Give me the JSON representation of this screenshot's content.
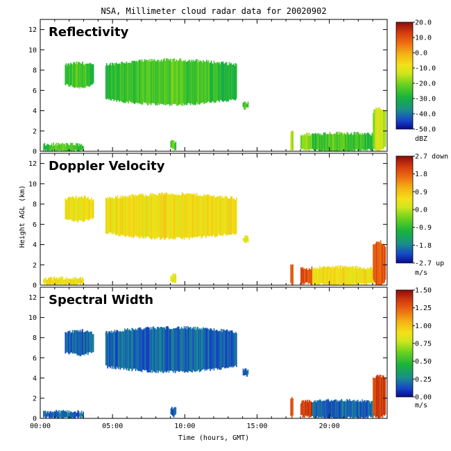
{
  "title": "NSA, Millimeter cloud radar data for 20020902",
  "chart_data": {
    "type": "heatmap",
    "title": "NSA, Millimeter cloud radar data for 20020902",
    "xlabel": "Time (hours, GMT)",
    "ylabel": "Height AGL (km)",
    "x_range": [
      0,
      24
    ],
    "y_range": [
      0,
      13
    ],
    "x_ticks": [
      {
        "value": 0,
        "label": "00:00"
      },
      {
        "value": 5,
        "label": "05:00"
      },
      {
        "value": 10,
        "label": "10:00"
      },
      {
        "value": 15,
        "label": "15:00"
      },
      {
        "value": 20,
        "label": "20:00"
      }
    ],
    "y_ticks": [
      0,
      2,
      4,
      6,
      8,
      10,
      12
    ],
    "grid": false,
    "panels": [
      {
        "title": "Reflectivity",
        "unit": "dBZ",
        "colorbar_ticks": [
          "20.0",
          "10.0",
          "0.0",
          "-10.0",
          "-20.0",
          "-30.0",
          "-40.0",
          "-50.0"
        ],
        "typical_value": 0.3,
        "core_value": 0.45
      },
      {
        "title": "Doppler Velocity",
        "unit": "m/s",
        "colorbar_ticks": [
          "2.7 down",
          "1.8",
          "0.9",
          "0.0",
          "-0.9",
          "-1.8",
          "-2.7 up"
        ],
        "typical_value": 0.6,
        "core_value": 0.85
      },
      {
        "title": "Spectral Width",
        "unit": "m/s",
        "colorbar_ticks": [
          "1.50",
          "1.25",
          "1.00",
          "0.75",
          "0.50",
          "0.25",
          "0.00"
        ],
        "typical_value": 0.12,
        "core_value": 0.9
      }
    ],
    "echo_regions": [
      {
        "name": "high-cloud-a",
        "x0": 1.7,
        "x1": 3.7,
        "base": 6.3,
        "top": 8.7
      },
      {
        "name": "high-cloud-b",
        "x0": 4.5,
        "x1": 13.6,
        "base": 4.6,
        "top": 9.0
      },
      {
        "name": "patch-14h",
        "x0": 14.0,
        "x1": 14.4,
        "base": 4.2,
        "top": 4.8
      },
      {
        "name": "boundary-layer-early",
        "x0": 0.2,
        "x1": 3.0,
        "base": 0.0,
        "top": 0.7
      },
      {
        "name": "spot-9h",
        "x0": 9.0,
        "x1": 9.4,
        "base": 0.2,
        "top": 1.0
      },
      {
        "name": "column-17h",
        "x0": 17.3,
        "x1": 17.5,
        "base": 0.0,
        "top": 2.1
      },
      {
        "name": "low-cloud-late",
        "x0": 18.0,
        "x1": 23.3,
        "base": 0.0,
        "top": 1.8
      },
      {
        "name": "column-23h",
        "x0": 23.0,
        "x1": 23.9,
        "base": 0.0,
        "top": 4.3
      }
    ]
  }
}
